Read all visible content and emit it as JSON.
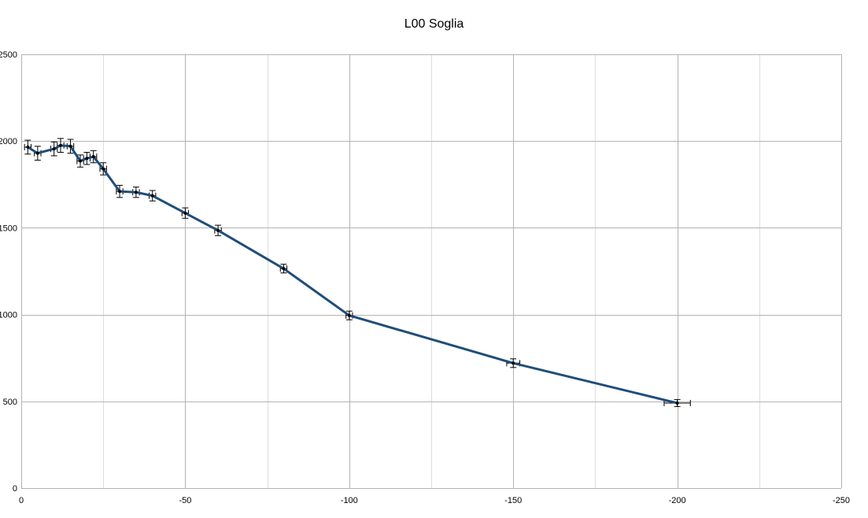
{
  "chart_data": {
    "type": "line",
    "title": "L00 Soglia",
    "xlabel": "",
    "ylabel": "",
    "xlim": [
      0,
      -250
    ],
    "ylim": [
      0,
      2500
    ],
    "x_ticks": [
      "0",
      "-50",
      "-100",
      "-150",
      "-200",
      "-250"
    ],
    "y_ticks": [
      "0",
      "500",
      "1000",
      "1500",
      "2000",
      "2500"
    ],
    "grid": true,
    "legend": "none",
    "line_color": "#1f4e79",
    "series": [
      {
        "x": [
          -2,
          -5,
          -10,
          -12,
          -15,
          -18,
          -20,
          -22,
          -25,
          -30,
          -35,
          -40,
          -50,
          -60,
          -80,
          -100,
          -150,
          -200
        ],
        "y": [
          1965,
          1930,
          1955,
          1975,
          1970,
          1885,
          1900,
          1910,
          1840,
          1710,
          1705,
          1685,
          1585,
          1485,
          1265,
          995,
          720,
          490
        ],
        "y_err": [
          40,
          40,
          40,
          40,
          40,
          35,
          35,
          35,
          35,
          35,
          30,
          30,
          30,
          30,
          25,
          25,
          25,
          20
        ],
        "x_err": [
          1,
          1,
          1,
          1,
          1,
          1,
          1,
          1,
          1,
          1,
          1,
          1,
          1,
          1,
          1,
          1,
          2,
          4
        ]
      }
    ]
  }
}
